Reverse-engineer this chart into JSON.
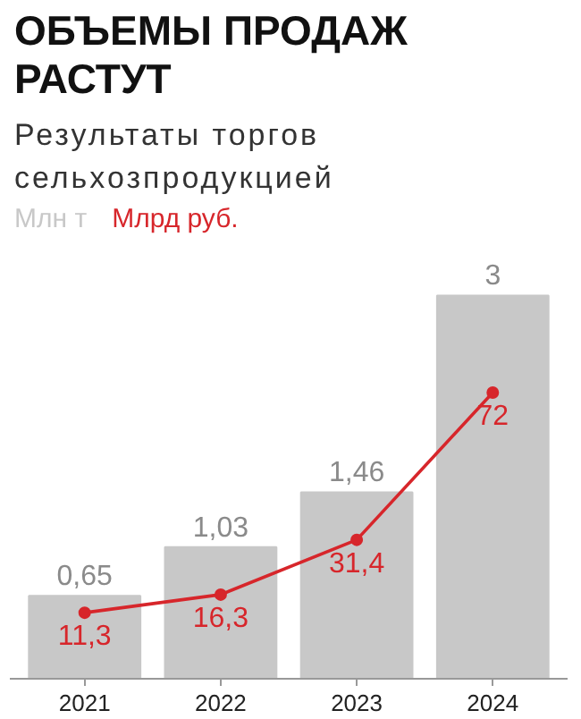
{
  "chart_data": {
    "type": "bar",
    "title": "ОБЪЕМЫ ПРОДАЖ РАСТУТ",
    "subtitle": "Результаты торгов сельхозпродукцией",
    "categories": [
      "2021",
      "2022",
      "2023",
      "2024"
    ],
    "series": [
      {
        "name": "Млн т",
        "color": "#c8c8c8",
        "values": [
          0.65,
          1.03,
          1.46,
          3
        ],
        "value_labels": [
          "0,65",
          "1,03",
          "1,46",
          "3"
        ]
      },
      {
        "name": "Млрд руб.",
        "type": "line",
        "axis": "y2",
        "color": "#d7262b",
        "marker": "circle",
        "values": [
          11.3,
          16.3,
          31.4,
          72
        ],
        "value_labels": [
          "11,3",
          "16,3",
          "31,4",
          "72"
        ]
      }
    ],
    "tick_labels": "x"
  }
}
